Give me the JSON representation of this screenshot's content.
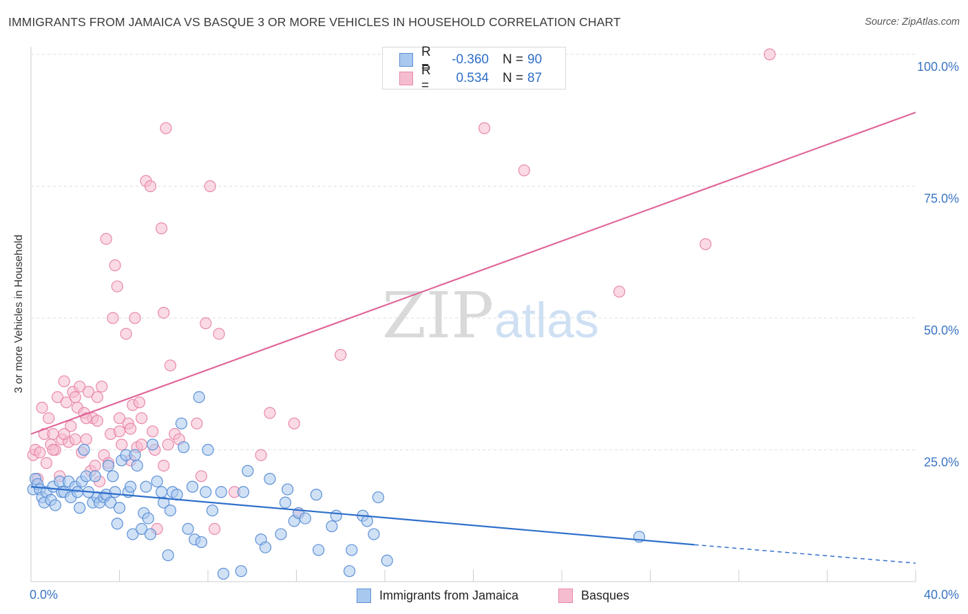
{
  "title": "IMMIGRANTS FROM JAMAICA VS BASQUE 3 OR MORE VEHICLES IN HOUSEHOLD CORRELATION CHART",
  "source": "Source: ZipAtlas.com",
  "watermark": {
    "zip": "ZIP",
    "atlas": "atlas"
  },
  "legend": {
    "series1": {
      "r_label": "R =",
      "r_value": "-0.360",
      "n_label": "N =",
      "n_value": "90"
    },
    "series2": {
      "r_label": "R =",
      "r_value": "0.534",
      "n_label": "N =",
      "n_value": "87"
    }
  },
  "colors": {
    "blue_fill": "#a9c8ef",
    "blue_stroke": "#5b8fd6",
    "blue_line": "#2f6fca",
    "pink_fill": "#f5bcd0",
    "pink_stroke": "#e888aa",
    "pink_line": "#e0669a",
    "grid": "#dddddd",
    "axis_text": "#3a74c4"
  },
  "chart_data": {
    "type": "scatter",
    "title": "IMMIGRANTS FROM JAMAICA VS BASQUE 3 OR MORE VEHICLES IN HOUSEHOLD CORRELATION CHART",
    "xlabel": "",
    "ylabel": "3 or more Vehicles in Household",
    "xlim": [
      0,
      40
    ],
    "ylim": [
      0,
      100
    ],
    "x_tick_labels": [
      "0.0%",
      "40.0%"
    ],
    "y_ticks": [
      25,
      50,
      75,
      100
    ],
    "y_tick_labels": [
      "25.0%",
      "50.0%",
      "75.0%",
      "100.0%"
    ],
    "grid": true,
    "legend_position": "bottom",
    "series": [
      {
        "name": "Immigrants from Jamaica",
        "color": "blue",
        "points": [
          [
            0.1,
            17.5
          ],
          [
            0.2,
            19.5
          ],
          [
            0.3,
            18.5
          ],
          [
            0.4,
            17.5
          ],
          [
            0.5,
            16
          ],
          [
            0.6,
            15
          ],
          [
            0.7,
            17
          ],
          [
            0.9,
            15.5
          ],
          [
            1.0,
            18
          ],
          [
            1.1,
            14.5
          ],
          [
            1.3,
            19
          ],
          [
            1.4,
            17
          ],
          [
            1.5,
            17
          ],
          [
            1.7,
            19
          ],
          [
            1.8,
            16
          ],
          [
            2.0,
            18
          ],
          [
            2.1,
            17
          ],
          [
            2.2,
            14
          ],
          [
            2.3,
            19
          ],
          [
            2.4,
            25
          ],
          [
            2.5,
            20
          ],
          [
            2.6,
            17
          ],
          [
            2.8,
            15
          ],
          [
            2.9,
            20
          ],
          [
            3.0,
            16
          ],
          [
            3.1,
            15
          ],
          [
            3.3,
            16
          ],
          [
            3.4,
            16.5
          ],
          [
            3.5,
            22
          ],
          [
            3.6,
            15
          ],
          [
            3.7,
            20
          ],
          [
            3.8,
            17
          ],
          [
            3.9,
            11
          ],
          [
            4.0,
            14
          ],
          [
            4.1,
            23
          ],
          [
            4.3,
            24
          ],
          [
            4.4,
            17
          ],
          [
            4.5,
            18
          ],
          [
            4.6,
            9
          ],
          [
            4.7,
            24
          ],
          [
            4.8,
            22
          ],
          [
            5.0,
            10
          ],
          [
            5.1,
            13
          ],
          [
            5.2,
            18
          ],
          [
            5.3,
            12
          ],
          [
            5.4,
            9
          ],
          [
            5.5,
            26
          ],
          [
            5.7,
            19
          ],
          [
            5.9,
            17
          ],
          [
            6.0,
            15
          ],
          [
            6.2,
            5
          ],
          [
            6.3,
            13.5
          ],
          [
            6.4,
            17
          ],
          [
            6.6,
            16.5
          ],
          [
            6.8,
            30
          ],
          [
            6.9,
            25.5
          ],
          [
            7.1,
            10
          ],
          [
            7.3,
            18
          ],
          [
            7.4,
            8
          ],
          [
            7.6,
            35
          ],
          [
            7.7,
            7.5
          ],
          [
            7.9,
            17
          ],
          [
            8.0,
            25
          ],
          [
            8.2,
            13.5
          ],
          [
            8.6,
            17
          ],
          [
            8.7,
            1.5
          ],
          [
            9.5,
            2
          ],
          [
            9.6,
            17
          ],
          [
            9.8,
            21
          ],
          [
            10.4,
            8
          ],
          [
            10.6,
            6.5
          ],
          [
            10.8,
            19.5
          ],
          [
            11.3,
            9
          ],
          [
            11.5,
            15
          ],
          [
            11.6,
            17.5
          ],
          [
            11.9,
            11.5
          ],
          [
            12.1,
            13
          ],
          [
            12.4,
            12
          ],
          [
            12.9,
            16.5
          ],
          [
            13.0,
            6
          ],
          [
            13.6,
            10.5
          ],
          [
            13.8,
            12.5
          ],
          [
            14.4,
            2
          ],
          [
            14.5,
            6
          ],
          [
            15.0,
            12.5
          ],
          [
            15.2,
            11.5
          ],
          [
            15.5,
            9
          ],
          [
            15.7,
            16
          ],
          [
            16.1,
            4
          ],
          [
            27.5,
            8.5
          ]
        ]
      },
      {
        "name": "Basques",
        "color": "pink",
        "points": [
          [
            0.1,
            24
          ],
          [
            0.2,
            25
          ],
          [
            0.3,
            19.5
          ],
          [
            0.4,
            24.5
          ],
          [
            0.5,
            33
          ],
          [
            0.6,
            28
          ],
          [
            0.7,
            22.5
          ],
          [
            0.8,
            31
          ],
          [
            0.9,
            26
          ],
          [
            1.0,
            28
          ],
          [
            1.1,
            25
          ],
          [
            1.2,
            35
          ],
          [
            1.3,
            20
          ],
          [
            1.4,
            27
          ],
          [
            1.5,
            38
          ],
          [
            1.6,
            34
          ],
          [
            1.7,
            26.5
          ],
          [
            1.8,
            29.5
          ],
          [
            1.9,
            36
          ],
          [
            2.0,
            27
          ],
          [
            2.1,
            33
          ],
          [
            2.2,
            37
          ],
          [
            2.3,
            24.5
          ],
          [
            2.4,
            32
          ],
          [
            2.5,
            27
          ],
          [
            2.6,
            36
          ],
          [
            2.7,
            21
          ],
          [
            2.8,
            31
          ],
          [
            2.9,
            22
          ],
          [
            3.0,
            35
          ],
          [
            3.1,
            19
          ],
          [
            3.2,
            37
          ],
          [
            3.3,
            24
          ],
          [
            3.4,
            65
          ],
          [
            3.6,
            28
          ],
          [
            3.7,
            50
          ],
          [
            3.8,
            60
          ],
          [
            3.9,
            56
          ],
          [
            4.0,
            31
          ],
          [
            4.1,
            26
          ],
          [
            4.3,
            47
          ],
          [
            4.4,
            30
          ],
          [
            4.5,
            23
          ],
          [
            4.6,
            33.5
          ],
          [
            4.7,
            50
          ],
          [
            4.8,
            25.5
          ],
          [
            4.9,
            34
          ],
          [
            5.0,
            31
          ],
          [
            5.2,
            76
          ],
          [
            5.4,
            75
          ],
          [
            5.5,
            28.5
          ],
          [
            5.6,
            25
          ],
          [
            5.7,
            10
          ],
          [
            5.9,
            67
          ],
          [
            6.0,
            51
          ],
          [
            6.1,
            86
          ],
          [
            6.2,
            26
          ],
          [
            6.3,
            41
          ],
          [
            6.5,
            28
          ],
          [
            6.7,
            27
          ],
          [
            7.5,
            30
          ],
          [
            7.7,
            20
          ],
          [
            7.9,
            49
          ],
          [
            8.1,
            75
          ],
          [
            8.3,
            10
          ],
          [
            8.5,
            47
          ],
          [
            9.2,
            17
          ],
          [
            10.4,
            24
          ],
          [
            10.8,
            32
          ],
          [
            11.9,
            30
          ],
          [
            12.1,
            13
          ],
          [
            14.0,
            43
          ],
          [
            20.5,
            86
          ],
          [
            22.3,
            78
          ],
          [
            26.6,
            55
          ],
          [
            30.5,
            64
          ],
          [
            33.4,
            100
          ],
          [
            1.0,
            25
          ],
          [
            1.5,
            28
          ],
          [
            2.0,
            35
          ],
          [
            2.5,
            31
          ],
          [
            3.0,
            30.5
          ],
          [
            3.5,
            22.5
          ],
          [
            4.0,
            28.5
          ],
          [
            4.5,
            29
          ],
          [
            5.0,
            26
          ],
          [
            6.0,
            22
          ]
        ]
      }
    ],
    "trendlines": [
      {
        "series": "Immigrants from Jamaica",
        "x": [
          0,
          30
        ],
        "y": [
          18,
          7
        ],
        "dashed_extension_to": [
          40,
          3.5
        ]
      },
      {
        "series": "Basques",
        "x": [
          0,
          40
        ],
        "y": [
          28,
          89
        ]
      }
    ]
  },
  "bottom_legend": [
    "Immigrants from Jamaica",
    "Basques"
  ]
}
